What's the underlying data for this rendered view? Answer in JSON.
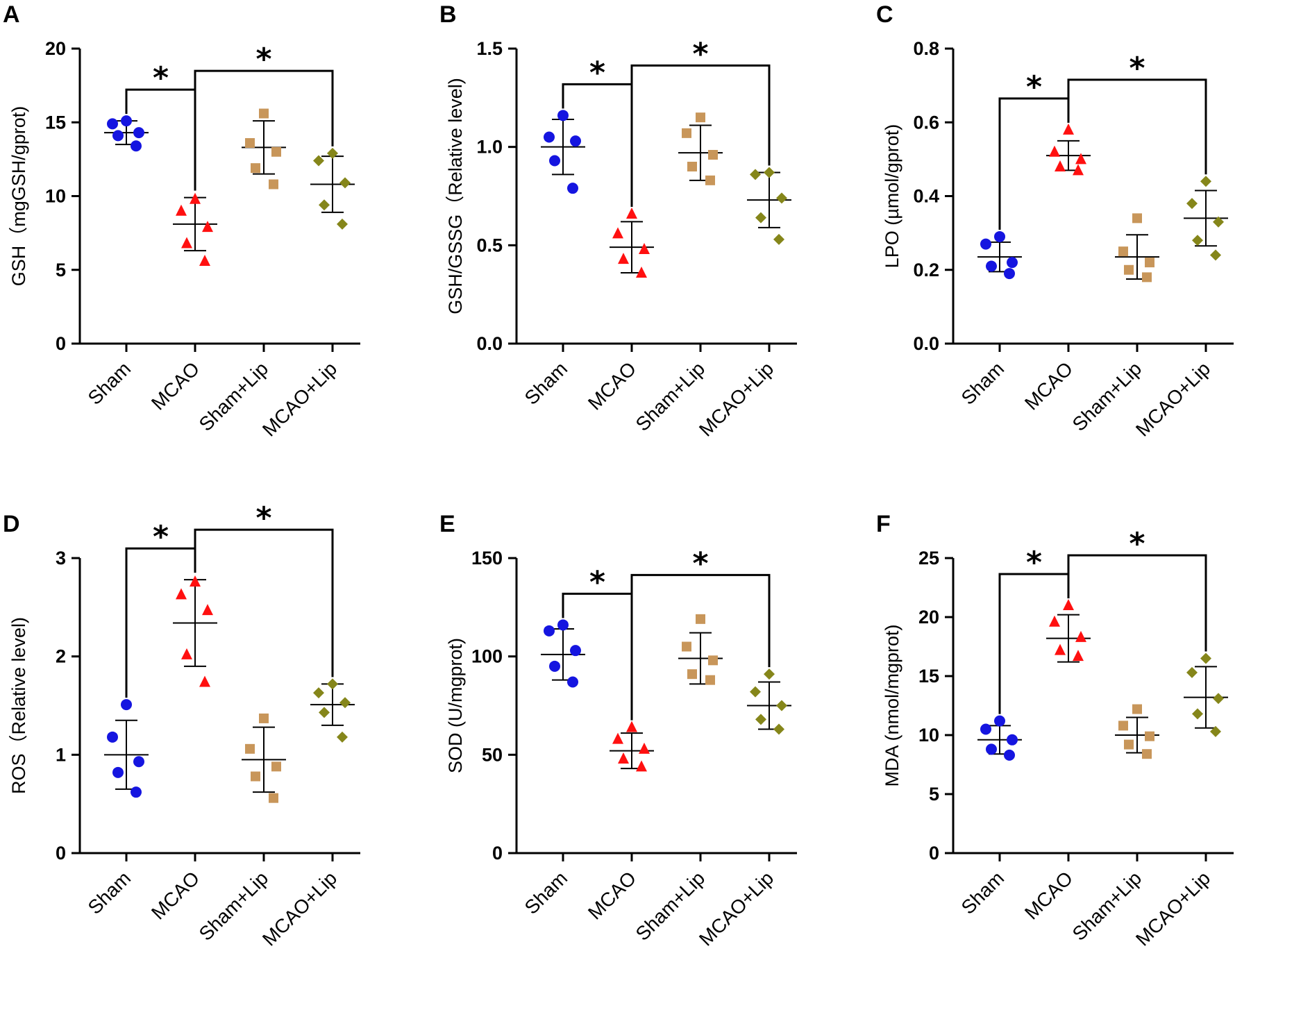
{
  "colors": {
    "Sham": "#1515e0",
    "MCAO": "#ff1010",
    "Sham+Lip": "#c8965a",
    "MCAO+Lip": "#85861a",
    "axis": "#000000"
  },
  "chart_data": [
    {
      "panel": "A",
      "type": "scatter",
      "ylabel": "GSH（mgGSH/gprot)",
      "ylim": [
        0,
        20
      ],
      "yticks": [
        "0",
        "5",
        "10",
        "15",
        "20"
      ],
      "categories": [
        "Sham",
        "MCAO",
        "Sham+Lip",
        "MCAO+Lip"
      ],
      "series": [
        {
          "name": "Sham",
          "marker": "circle",
          "points": [
            15.1,
            14.9,
            14.3,
            14.1,
            13.4
          ],
          "mean": 14.3,
          "sd": 0.8
        },
        {
          "name": "MCAO",
          "marker": "triangle",
          "points": [
            9.8,
            9.0,
            7.9,
            6.8,
            5.6
          ],
          "mean": 8.1,
          "sd": 1.8
        },
        {
          "name": "Sham+Lip",
          "marker": "square",
          "points": [
            15.6,
            13.6,
            13.0,
            11.9,
            10.8
          ],
          "mean": 13.3,
          "sd": 1.8
        },
        {
          "name": "MCAO+Lip",
          "marker": "diamond",
          "points": [
            12.9,
            12.4,
            10.9,
            9.4,
            8.1
          ],
          "mean": 10.8,
          "sd": 1.9
        }
      ],
      "significance": [
        {
          "from": "Sham",
          "to": "MCAO",
          "label": "*"
        },
        {
          "from": "MCAO",
          "to": "MCAO+Lip",
          "label": "*"
        }
      ]
    },
    {
      "panel": "B",
      "type": "scatter",
      "ylabel": "GSH/GSSG（Relative level)",
      "ylim": [
        0,
        1.5
      ],
      "yticks": [
        "0.0",
        "0.5",
        "1.0",
        "1.5"
      ],
      "categories": [
        "Sham",
        "MCAO",
        "Sham+Lip",
        "MCAO+Lip"
      ],
      "series": [
        {
          "name": "Sham",
          "marker": "circle",
          "points": [
            1.16,
            1.05,
            1.03,
            0.93,
            0.79
          ],
          "mean": 1.0,
          "sd": 0.14
        },
        {
          "name": "MCAO",
          "marker": "triangle",
          "points": [
            0.66,
            0.56,
            0.48,
            0.43,
            0.36
          ],
          "mean": 0.49,
          "sd": 0.13
        },
        {
          "name": "Sham+Lip",
          "marker": "square",
          "points": [
            1.15,
            1.07,
            0.96,
            0.9,
            0.83
          ],
          "mean": 0.97,
          "sd": 0.14
        },
        {
          "name": "MCAO+Lip",
          "marker": "diamond",
          "points": [
            0.87,
            0.86,
            0.74,
            0.64,
            0.53
          ],
          "mean": 0.73,
          "sd": 0.14
        }
      ],
      "significance": [
        {
          "from": "Sham",
          "to": "MCAO",
          "label": "*"
        },
        {
          "from": "MCAO",
          "to": "MCAO+Lip",
          "label": "*"
        }
      ]
    },
    {
      "panel": "C",
      "type": "scatter",
      "ylabel": "LPO (µmol/gprot)",
      "ylim": [
        0,
        0.8
      ],
      "yticks": [
        "0.0",
        "0.2",
        "0.4",
        "0.6",
        "0.8"
      ],
      "categories": [
        "Sham",
        "MCAO",
        "Sham+Lip",
        "MCAO+Lip"
      ],
      "series": [
        {
          "name": "Sham",
          "marker": "circle",
          "points": [
            0.29,
            0.27,
            0.22,
            0.21,
            0.19
          ],
          "mean": 0.235,
          "sd": 0.04
        },
        {
          "name": "MCAO",
          "marker": "triangle",
          "points": [
            0.58,
            0.52,
            0.5,
            0.48,
            0.47
          ],
          "mean": 0.51,
          "sd": 0.04
        },
        {
          "name": "Sham+Lip",
          "marker": "square",
          "points": [
            0.34,
            0.25,
            0.22,
            0.2,
            0.18
          ],
          "mean": 0.235,
          "sd": 0.06
        },
        {
          "name": "MCAO+Lip",
          "marker": "diamond",
          "points": [
            0.44,
            0.38,
            0.33,
            0.28,
            0.24
          ],
          "mean": 0.34,
          "sd": 0.075
        }
      ],
      "significance": [
        {
          "from": "Sham",
          "to": "MCAO",
          "label": "*"
        },
        {
          "from": "MCAO",
          "to": "MCAO+Lip",
          "label": "*"
        }
      ]
    },
    {
      "panel": "D",
      "type": "scatter",
      "ylabel": "ROS（Relative level)",
      "ylim": [
        0,
        3
      ],
      "yticks": [
        "0",
        "1",
        "2",
        "3"
      ],
      "categories": [
        "Sham",
        "MCAO",
        "Sham+Lip",
        "MCAO+Lip"
      ],
      "series": [
        {
          "name": "Sham",
          "marker": "circle",
          "points": [
            1.51,
            1.18,
            0.93,
            0.82,
            0.62
          ],
          "mean": 1.0,
          "sd": 0.35
        },
        {
          "name": "MCAO",
          "marker": "triangle",
          "points": [
            2.76,
            2.63,
            2.47,
            2.02,
            1.74
          ],
          "mean": 2.34,
          "sd": 0.44
        },
        {
          "name": "Sham+Lip",
          "marker": "square",
          "points": [
            1.37,
            1.06,
            0.88,
            0.78,
            0.56
          ],
          "mean": 0.95,
          "sd": 0.33
        },
        {
          "name": "MCAO+Lip",
          "marker": "diamond",
          "points": [
            1.72,
            1.63,
            1.53,
            1.43,
            1.18
          ],
          "mean": 1.51,
          "sd": 0.21
        }
      ],
      "significance": [
        {
          "from": "Sham",
          "to": "MCAO",
          "label": "*"
        },
        {
          "from": "MCAO",
          "to": "MCAO+Lip",
          "label": "*"
        }
      ]
    },
    {
      "panel": "E",
      "type": "scatter",
      "ylabel": "SOD (U/mgprot)",
      "ylim": [
        0,
        150
      ],
      "yticks": [
        "0",
        "50",
        "100",
        "150"
      ],
      "categories": [
        "Sham",
        "MCAO",
        "Sham+Lip",
        "MCAO+Lip"
      ],
      "series": [
        {
          "name": "Sham",
          "marker": "circle",
          "points": [
            116,
            113,
            103,
            95,
            87
          ],
          "mean": 101,
          "sd": 13
        },
        {
          "name": "MCAO",
          "marker": "triangle",
          "points": [
            64,
            58,
            53,
            48,
            44
          ],
          "mean": 52,
          "sd": 9
        },
        {
          "name": "Sham+Lip",
          "marker": "square",
          "points": [
            119,
            105,
            98,
            91,
            88
          ],
          "mean": 99,
          "sd": 13
        },
        {
          "name": "MCAO+Lip",
          "marker": "diamond",
          "points": [
            91,
            82,
            75,
            68,
            63
          ],
          "mean": 75,
          "sd": 12
        }
      ],
      "significance": [
        {
          "from": "Sham",
          "to": "MCAO",
          "label": "*"
        },
        {
          "from": "MCAO",
          "to": "MCAO+Lip",
          "label": "*"
        }
      ]
    },
    {
      "panel": "F",
      "type": "scatter",
      "ylabel": "MDA (nmol/mgprot)",
      "ylim": [
        0,
        25
      ],
      "yticks": [
        "0",
        "5",
        "10",
        "15",
        "20",
        "25"
      ],
      "categories": [
        "Sham",
        "MCAO",
        "Sham+Lip",
        "MCAO+Lip"
      ],
      "series": [
        {
          "name": "Sham",
          "marker": "circle",
          "points": [
            11.2,
            10.5,
            9.6,
            8.8,
            8.3
          ],
          "mean": 9.6,
          "sd": 1.2
        },
        {
          "name": "MCAO",
          "marker": "triangle",
          "points": [
            21.0,
            19.6,
            18.3,
            17.2,
            16.7
          ],
          "mean": 18.2,
          "sd": 2.0
        },
        {
          "name": "Sham+Lip",
          "marker": "square",
          "points": [
            12.2,
            10.8,
            9.9,
            9.2,
            8.4
          ],
          "mean": 10.0,
          "sd": 1.5
        },
        {
          "name": "MCAO+Lip",
          "marker": "diamond",
          "points": [
            16.5,
            15.3,
            13.1,
            11.8,
            10.3
          ],
          "mean": 13.2,
          "sd": 2.6
        }
      ],
      "significance": [
        {
          "from": "Sham",
          "to": "MCAO",
          "label": "*"
        },
        {
          "from": "MCAO",
          "to": "MCAO+Lip",
          "label": "*"
        }
      ]
    }
  ]
}
